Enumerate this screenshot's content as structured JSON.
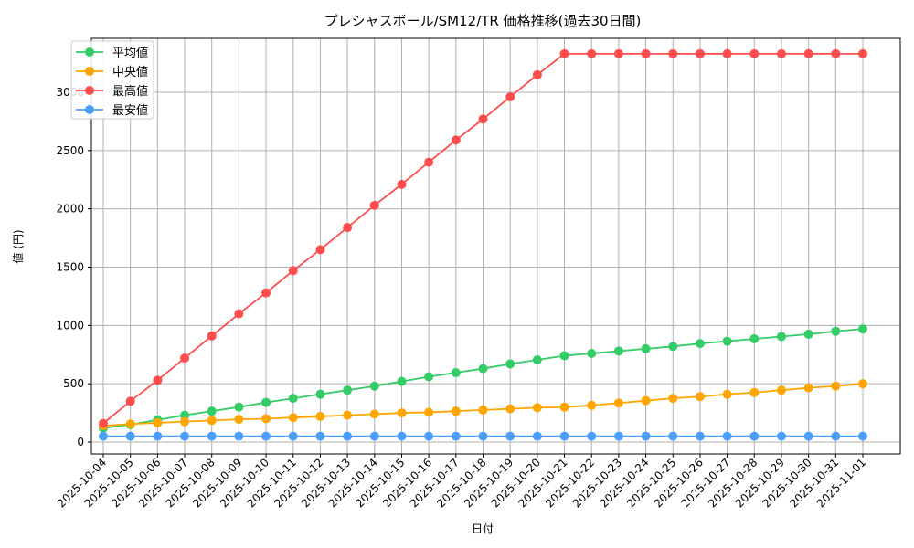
{
  "chart_data": {
    "type": "line",
    "title": "プレシャスボール/SM12/TR 価格推移(過去30日間)",
    "xlabel": "日付",
    "ylabel": "値 (円)",
    "ylim": [
      -100,
      3450
    ],
    "yticks": [
      0,
      500,
      1000,
      1500,
      2000,
      2500,
      3000
    ],
    "grid": true,
    "legend_position": "top-left",
    "categories": [
      "2025-10-04",
      "2025-10-05",
      "2025-10-06",
      "2025-10-07",
      "2025-10-08",
      "2025-10-09",
      "2025-10-10",
      "2025-10-11",
      "2025-10-12",
      "2025-10-13",
      "2025-10-14",
      "2025-10-15",
      "2025-10-16",
      "2025-10-17",
      "2025-10-18",
      "2025-10-19",
      "2025-10-20",
      "2025-10-21",
      "2025-10-22",
      "2025-10-23",
      "2025-10-24",
      "2025-10-25",
      "2025-10-26",
      "2025-10-27",
      "2025-10-28",
      "2025-10-29",
      "2025-10-30",
      "2025-10-31",
      "2025-11-01"
    ],
    "series": [
      {
        "name": "平均値",
        "color": "#33cc66",
        "values": [
          120,
          150,
          190,
          230,
          265,
          300,
          340,
          375,
          410,
          445,
          480,
          520,
          560,
          595,
          630,
          670,
          705,
          740,
          760,
          780,
          800,
          820,
          845,
          865,
          885,
          905,
          925,
          950,
          970
        ]
      },
      {
        "name": "中央値",
        "color": "#ffa500",
        "values": [
          140,
          155,
          165,
          175,
          185,
          195,
          200,
          210,
          220,
          230,
          240,
          250,
          255,
          265,
          275,
          285,
          295,
          300,
          315,
          335,
          355,
          375,
          390,
          410,
          425,
          445,
          465,
          480,
          500
        ]
      },
      {
        "name": "最高値",
        "color": "#ff4d4d",
        "values": [
          160,
          350,
          530,
          720,
          910,
          1100,
          1280,
          1470,
          1650,
          1840,
          2030,
          2210,
          2400,
          2590,
          2770,
          2960,
          3150,
          3330,
          3330,
          3330,
          3330,
          3330,
          3330,
          3330,
          3330,
          3330,
          3330,
          3330,
          3330
        ]
      },
      {
        "name": "最安値",
        "color": "#4d9fff",
        "values": [
          50,
          50,
          50,
          50,
          50,
          50,
          50,
          50,
          50,
          50,
          50,
          50,
          50,
          50,
          50,
          50,
          50,
          50,
          50,
          50,
          50,
          50,
          50,
          50,
          50,
          50,
          50,
          50,
          50
        ]
      }
    ]
  }
}
